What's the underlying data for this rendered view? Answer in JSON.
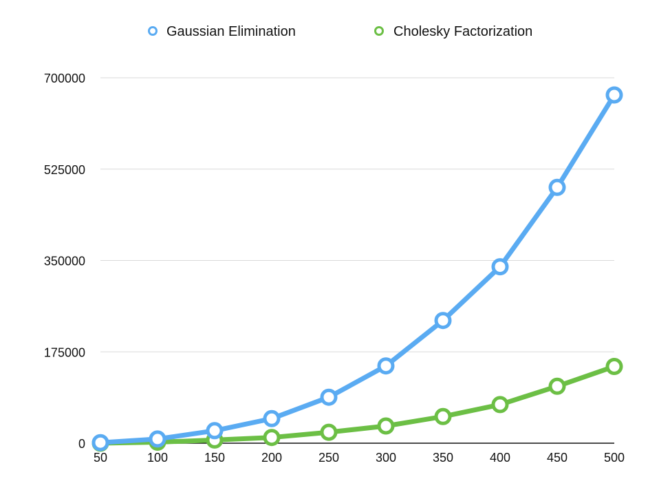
{
  "chart_data": {
    "type": "line",
    "title": "",
    "xlabel": "",
    "ylabel": "",
    "x": [
      50,
      100,
      150,
      200,
      250,
      300,
      350,
      400,
      450,
      500
    ],
    "x_tick_labels": [
      "50",
      "100",
      "150",
      "200",
      "250",
      "300",
      "350",
      "400",
      "450",
      "500"
    ],
    "y_ticks": [
      0,
      175000,
      350000,
      525000,
      700000
    ],
    "y_tick_labels": [
      "0",
      "175000",
      "350000",
      "525000",
      "700000"
    ],
    "ylim": [
      0,
      700000
    ],
    "grid": true,
    "legend_position": "top",
    "series": [
      {
        "name": "Gaussian Elimination",
        "color": "#5aabf2",
        "values": [
          1000,
          8000,
          24000,
          47000,
          88000,
          148000,
          235000,
          338000,
          490000,
          667000
        ]
      },
      {
        "name": "Cholesky Factorization",
        "color": "#6cbf45",
        "values": [
          0,
          2000,
          6000,
          11000,
          21000,
          33000,
          51000,
          74000,
          109000,
          147000
        ]
      }
    ]
  }
}
